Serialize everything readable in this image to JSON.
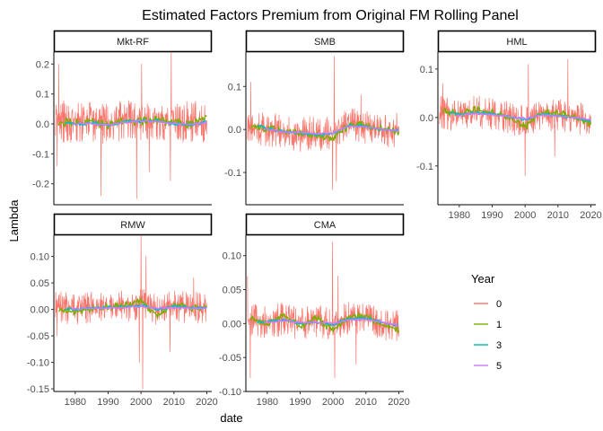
{
  "chart_data": {
    "type": "line",
    "title": "Estimated Factors Premium from Original FM Rolling Panel",
    "xlabel": "date",
    "ylabel": "Lambda",
    "x_ticks": [
      1980,
      1990,
      2000,
      2010,
      2020
    ],
    "x_range": [
      1973.5,
      2021.5
    ],
    "grid": false,
    "legend": {
      "title": "Year",
      "placement": "right",
      "entries": [
        {
          "label": "0",
          "color": "#F8766D"
        },
        {
          "label": "1",
          "color": "#7CAE00"
        },
        {
          "label": "3",
          "color": "#00BFC4"
        },
        {
          "label": "5",
          "color": "#C77CFF"
        }
      ]
    },
    "panels": [
      {
        "name": "Mkt-RF",
        "ylim": [
          -0.27,
          0.24
        ],
        "y_ticks": [
          -0.2,
          -0.1,
          0.0,
          0.1,
          0.2
        ],
        "y_tick_labels": [
          "-0.2",
          "-0.1",
          "0.0",
          "0.1",
          "0.2"
        ],
        "noise_amp": 0.07,
        "spikes": [
          [
            1974.5,
            -0.14
          ],
          [
            1975.0,
            0.2
          ],
          [
            1987.8,
            -0.24
          ],
          [
            1998.7,
            -0.25
          ],
          [
            2000.2,
            0.2
          ],
          [
            2002.5,
            -0.16
          ],
          [
            2008.9,
            -0.19
          ],
          [
            2009.2,
            0.24
          ],
          [
            2020.2,
            -0.13
          ]
        ],
        "series": [
          {
            "name": "0",
            "x": [
              1974,
              1980,
              1985,
              1990,
              1995,
              2000,
              2005,
              2010,
              2015,
              2020
            ],
            "values": [
              0.01,
              0.005,
              0.012,
              0.0,
              0.015,
              0.008,
              0.012,
              0.01,
              0.006,
              0.01
            ]
          },
          {
            "name": "1",
            "x": [
              1975,
              1980,
              1985,
              1990,
              1995,
              2000,
              2005,
              2010,
              2015,
              2020
            ],
            "values": [
              0.005,
              0.003,
              0.01,
              -0.005,
              0.012,
              0.008,
              0.015,
              0.005,
              -0.002,
              0.025
            ]
          },
          {
            "name": "3",
            "x": [
              1977,
              1980,
              1985,
              1990,
              1995,
              2000,
              2005,
              2010,
              2015,
              2020
            ],
            "values": [
              0.005,
              -0.002,
              0.005,
              -0.008,
              0.008,
              0.01,
              0.01,
              0.0,
              -0.005,
              0.01
            ]
          },
          {
            "name": "5",
            "x": [
              1979,
              1985,
              1990,
              1995,
              2000,
              2005,
              2010,
              2015,
              2020
            ],
            "values": [
              0.0,
              0.002,
              -0.004,
              0.006,
              0.01,
              0.008,
              0.002,
              -0.002,
              0.004
            ]
          }
        ]
      },
      {
        "name": "SMB",
        "ylim": [
          -0.175,
          0.18
        ],
        "y_ticks": [
          -0.1,
          0.0,
          0.1
        ],
        "y_tick_labels": [
          "-0.1",
          "0.0",
          "0.1"
        ],
        "noise_amp": 0.04,
        "spikes": [
          [
            1975.0,
            0.11
          ],
          [
            1999.8,
            -0.14
          ],
          [
            2000.3,
            0.17
          ],
          [
            2001.0,
            -0.12
          ],
          [
            2008.5,
            0.08
          ],
          [
            2020.5,
            -0.09
          ]
        ],
        "series": [
          {
            "name": "0",
            "x": [
              1974,
              1980,
              1985,
              1990,
              1995,
              2000,
              2005,
              2010,
              2015,
              2020
            ],
            "values": [
              0.005,
              0.0,
              -0.005,
              -0.012,
              -0.008,
              -0.01,
              0.01,
              0.005,
              0.0,
              -0.002
            ]
          },
          {
            "name": "1",
            "x": [
              1975,
              1980,
              1985,
              1990,
              1995,
              2000,
              2005,
              2010,
              2015,
              2020
            ],
            "values": [
              0.008,
              0.002,
              -0.004,
              -0.01,
              -0.012,
              -0.02,
              0.012,
              0.01,
              0.002,
              -0.005
            ]
          },
          {
            "name": "3",
            "x": [
              1977,
              1980,
              1985,
              1990,
              1995,
              2000,
              2005,
              2010,
              2015,
              2020
            ],
            "values": [
              0.01,
              0.003,
              -0.005,
              -0.008,
              -0.012,
              -0.01,
              0.01,
              0.008,
              0.0,
              -0.002
            ]
          },
          {
            "name": "5",
            "x": [
              1979,
              1985,
              1990,
              1995,
              2000,
              2005,
              2010,
              2015,
              2020
            ],
            "values": [
              0.002,
              -0.006,
              -0.008,
              -0.01,
              -0.008,
              0.008,
              0.006,
              0.0,
              -0.003
            ]
          }
        ]
      },
      {
        "name": "HML",
        "ylim": [
          -0.18,
          0.135
        ],
        "y_ticks": [
          -0.1,
          0.0,
          0.1
        ],
        "y_tick_labels": [
          "-0.1",
          "0.0",
          "0.1"
        ],
        "noise_amp": 0.035,
        "spikes": [
          [
            1975.0,
            0.07
          ],
          [
            2000.0,
            -0.12
          ],
          [
            2001.0,
            0.11
          ],
          [
            2009.0,
            -0.08
          ],
          [
            2013.0,
            0.12
          ],
          [
            2020.2,
            -0.17
          ]
        ],
        "series": [
          {
            "name": "0",
            "x": [
              1974,
              1980,
              1985,
              1990,
              1995,
              2000,
              2005,
              2010,
              2015,
              2020
            ],
            "values": [
              0.01,
              0.005,
              0.012,
              0.008,
              0.0,
              -0.01,
              0.01,
              0.005,
              0.0,
              -0.01
            ]
          },
          {
            "name": "1",
            "x": [
              1975,
              1980,
              1985,
              1990,
              1995,
              2000,
              2005,
              2010,
              2015,
              2020
            ],
            "values": [
              0.015,
              0.008,
              0.015,
              0.01,
              0.0,
              -0.02,
              0.01,
              0.008,
              0.002,
              -0.015
            ]
          },
          {
            "name": "3",
            "x": [
              1977,
              1980,
              1985,
              1990,
              1995,
              2000,
              2005,
              2010,
              2015,
              2020
            ],
            "values": [
              0.01,
              0.006,
              0.01,
              0.008,
              0.002,
              -0.005,
              0.006,
              0.004,
              0.0,
              -0.008
            ]
          },
          {
            "name": "5",
            "x": [
              1979,
              1985,
              1990,
              1995,
              2000,
              2005,
              2010,
              2015,
              2020
            ],
            "values": [
              0.004,
              0.008,
              0.006,
              0.002,
              -0.002,
              0.005,
              0.003,
              0.0,
              -0.005
            ]
          }
        ]
      },
      {
        "name": "RMW",
        "ylim": [
          -0.155,
          0.14
        ],
        "y_ticks": [
          -0.15,
          -0.1,
          -0.05,
          0.0,
          0.05,
          0.1
        ],
        "y_tick_labels": [
          "-0.15",
          "-0.10",
          "-0.05",
          "0.00",
          "0.05",
          "0.10"
        ],
        "noise_amp": 0.03,
        "spikes": [
          [
            1974.5,
            -0.05
          ],
          [
            1999.5,
            -0.1
          ],
          [
            2000.0,
            0.14
          ],
          [
            2000.5,
            -0.15
          ],
          [
            2001.5,
            0.1
          ],
          [
            2008.8,
            -0.08
          ],
          [
            2016.0,
            0.06
          ]
        ],
        "series": [
          {
            "name": "0",
            "x": [
              1974,
              1980,
              1985,
              1990,
              1995,
              2000,
              2005,
              2010,
              2015,
              2020
            ],
            "values": [
              0.005,
              0.0,
              0.005,
              0.002,
              0.006,
              0.01,
              0.0,
              0.008,
              0.004,
              0.002
            ]
          },
          {
            "name": "1",
            "x": [
              1975,
              1980,
              1985,
              1990,
              1995,
              2000,
              2005,
              2010,
              2015,
              2020
            ],
            "values": [
              0.0,
              -0.005,
              0.002,
              0.005,
              0.008,
              0.015,
              -0.012,
              0.01,
              0.002,
              0.005
            ]
          },
          {
            "name": "3",
            "x": [
              1977,
              1980,
              1985,
              1990,
              1995,
              2000,
              2005,
              2010,
              2015,
              2020
            ],
            "values": [
              0.002,
              0.0,
              0.003,
              0.004,
              0.005,
              0.008,
              0.0,
              0.006,
              0.003,
              0.003
            ]
          },
          {
            "name": "5",
            "x": [
              1979,
              1985,
              1990,
              1995,
              2000,
              2005,
              2010,
              2015,
              2020
            ],
            "values": [
              0.001,
              0.002,
              0.003,
              0.004,
              0.006,
              0.002,
              0.004,
              0.002,
              0.002
            ]
          }
        ]
      },
      {
        "name": "CMA",
        "ylim": [
          -0.1,
          0.13
        ],
        "y_ticks": [
          -0.1,
          -0.05,
          0.0,
          0.05,
          0.1
        ],
        "y_tick_labels": [
          "-0.10",
          "-0.05",
          "0.00",
          "0.05",
          "0.10"
        ],
        "noise_amp": 0.025,
        "spikes": [
          [
            1974.0,
            0.07
          ],
          [
            1974.8,
            -0.08
          ],
          [
            1999.8,
            0.12
          ],
          [
            2000.5,
            -0.08
          ],
          [
            2001.5,
            0.07
          ],
          [
            2007.0,
            -0.06
          ]
        ],
        "series": [
          {
            "name": "0",
            "x": [
              1974,
              1980,
              1985,
              1990,
              1995,
              2000,
              2005,
              2010,
              2015,
              2020
            ],
            "values": [
              0.005,
              0.002,
              0.008,
              0.0,
              0.005,
              0.0,
              0.008,
              0.01,
              0.0,
              -0.005
            ]
          },
          {
            "name": "1",
            "x": [
              1975,
              1980,
              1985,
              1990,
              1995,
              2000,
              2005,
              2010,
              2015,
              2020
            ],
            "values": [
              0.008,
              0.0,
              0.012,
              -0.005,
              0.008,
              -0.01,
              0.01,
              0.012,
              -0.002,
              -0.008
            ]
          },
          {
            "name": "3",
            "x": [
              1977,
              1980,
              1985,
              1990,
              1995,
              2000,
              2005,
              2010,
              2015,
              2020
            ],
            "values": [
              0.002,
              0.003,
              0.006,
              0.0,
              0.002,
              -0.002,
              0.008,
              0.008,
              0.002,
              -0.004
            ]
          },
          {
            "name": "5",
            "x": [
              1979,
              1985,
              1990,
              1995,
              2000,
              2005,
              2010,
              2015,
              2020
            ],
            "values": [
              0.002,
              0.004,
              0.001,
              0.002,
              0.0,
              0.006,
              0.006,
              0.002,
              -0.003
            ]
          }
        ]
      }
    ]
  }
}
